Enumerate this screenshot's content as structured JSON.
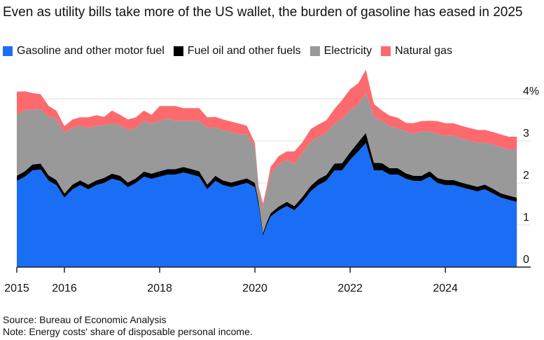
{
  "chart_data": {
    "type": "area",
    "stacked": true,
    "title": "Even as utility bills take more of the US wallet, the burden of gasoline has eased in 2025",
    "x_tick_labels": [
      "2015",
      "2016",
      "2018",
      "2020",
      "2022",
      "2024"
    ],
    "x_ticks": [
      2015,
      2016,
      2018,
      2020,
      2022,
      2024
    ],
    "y_tick_labels": [
      "0",
      "1",
      "2",
      "3",
      "4%"
    ],
    "y_ticks": [
      0,
      1,
      2,
      3,
      4
    ],
    "xlim": [
      2015,
      2025.6
    ],
    "ylim": [
      0,
      4.5
    ],
    "grid": true,
    "legend_position": "top-left",
    "x": [
      2015.0,
      2015.17,
      2015.33,
      2015.5,
      2015.67,
      2015.83,
      2016.0,
      2016.17,
      2016.33,
      2016.5,
      2016.67,
      2016.83,
      2017.0,
      2017.17,
      2017.33,
      2017.5,
      2017.67,
      2017.83,
      2018.0,
      2018.17,
      2018.33,
      2018.5,
      2018.67,
      2018.83,
      2019.0,
      2019.17,
      2019.33,
      2019.5,
      2019.67,
      2019.83,
      2020.0,
      2020.08,
      2020.17,
      2020.25,
      2020.33,
      2020.5,
      2020.67,
      2020.83,
      2021.0,
      2021.17,
      2021.33,
      2021.5,
      2021.67,
      2021.83,
      2022.0,
      2022.17,
      2022.33,
      2022.42,
      2022.5,
      2022.67,
      2022.83,
      2023.0,
      2023.17,
      2023.33,
      2023.5,
      2023.67,
      2023.83,
      2024.0,
      2024.17,
      2024.33,
      2024.5,
      2024.67,
      2024.83,
      2025.0,
      2025.17,
      2025.33,
      2025.5
    ],
    "series": [
      {
        "name": "Gasoline and other motor fuel",
        "color": "#1a6ef5",
        "values": [
          2.05,
          2.15,
          2.3,
          2.32,
          2.05,
          1.95,
          1.65,
          1.85,
          1.95,
          1.85,
          1.95,
          2.0,
          2.1,
          2.05,
          1.9,
          2.0,
          2.15,
          2.1,
          2.15,
          2.2,
          2.2,
          2.25,
          2.2,
          2.15,
          1.85,
          2.05,
          1.95,
          1.9,
          1.95,
          2.0,
          1.9,
          1.45,
          0.75,
          1.0,
          1.2,
          1.35,
          1.45,
          1.35,
          1.55,
          1.8,
          1.95,
          2.05,
          2.3,
          2.3,
          2.55,
          2.75,
          2.95,
          2.6,
          2.3,
          2.3,
          2.2,
          2.2,
          2.1,
          2.05,
          2.05,
          2.15,
          2.0,
          1.95,
          1.95,
          1.9,
          1.85,
          1.8,
          1.85,
          1.75,
          1.65,
          1.6,
          1.55
        ]
      },
      {
        "name": "Fuel oil and other fuels",
        "color": "#000000",
        "values": [
          0.12,
          0.13,
          0.14,
          0.14,
          0.13,
          0.12,
          0.1,
          0.11,
          0.11,
          0.11,
          0.11,
          0.12,
          0.12,
          0.12,
          0.11,
          0.11,
          0.12,
          0.12,
          0.13,
          0.13,
          0.13,
          0.13,
          0.13,
          0.13,
          0.11,
          0.12,
          0.11,
          0.11,
          0.11,
          0.11,
          0.1,
          0.09,
          0.06,
          0.07,
          0.08,
          0.09,
          0.1,
          0.1,
          0.12,
          0.13,
          0.14,
          0.14,
          0.16,
          0.17,
          0.18,
          0.22,
          0.24,
          0.2,
          0.18,
          0.17,
          0.15,
          0.15,
          0.13,
          0.12,
          0.12,
          0.13,
          0.12,
          0.12,
          0.12,
          0.11,
          0.11,
          0.11,
          0.11,
          0.11,
          0.1,
          0.1,
          0.1
        ]
      },
      {
        "name": "Electricity",
        "color": "#999999",
        "values": [
          1.45,
          1.45,
          1.3,
          1.3,
          1.4,
          1.45,
          1.45,
          1.35,
          1.3,
          1.35,
          1.3,
          1.25,
          1.2,
          1.2,
          1.25,
          1.2,
          1.2,
          1.2,
          1.2,
          1.2,
          1.15,
          1.1,
          1.15,
          1.2,
          1.35,
          1.15,
          1.2,
          1.2,
          1.1,
          1.05,
          0.85,
          0.3,
          0.6,
          0.75,
          0.95,
          1.0,
          1.0,
          1.0,
          1.05,
          1.05,
          1.0,
          1.0,
          0.95,
          1.05,
          1.0,
          0.9,
          0.95,
          1.05,
          1.1,
          1.0,
          1.0,
          0.95,
          1.0,
          1.0,
          1.05,
          0.95,
          1.05,
          1.05,
          1.05,
          1.05,
          1.05,
          1.05,
          1.0,
          1.05,
          1.1,
          1.1,
          1.15
        ]
      },
      {
        "name": "Natural gas",
        "color": "#fd6a6d",
        "values": [
          0.55,
          0.45,
          0.4,
          0.35,
          0.25,
          0.2,
          0.15,
          0.2,
          0.2,
          0.25,
          0.25,
          0.2,
          0.3,
          0.25,
          0.25,
          0.25,
          0.25,
          0.2,
          0.35,
          0.3,
          0.35,
          0.3,
          0.3,
          0.3,
          0.25,
          0.25,
          0.25,
          0.25,
          0.25,
          0.2,
          0.1,
          0.07,
          0.1,
          0.1,
          0.15,
          0.2,
          0.2,
          0.3,
          0.25,
          0.3,
          0.3,
          0.3,
          0.35,
          0.45,
          0.5,
          0.5,
          0.55,
          0.4,
          0.3,
          0.25,
          0.25,
          0.25,
          0.2,
          0.25,
          0.25,
          0.25,
          0.3,
          0.3,
          0.3,
          0.3,
          0.3,
          0.3,
          0.3,
          0.3,
          0.3,
          0.3,
          0.3
        ]
      }
    ]
  },
  "footer": {
    "source": "Source: Bureau of Economic Analysis",
    "note": "Note: Energy costs' share of disposable personal income."
  }
}
